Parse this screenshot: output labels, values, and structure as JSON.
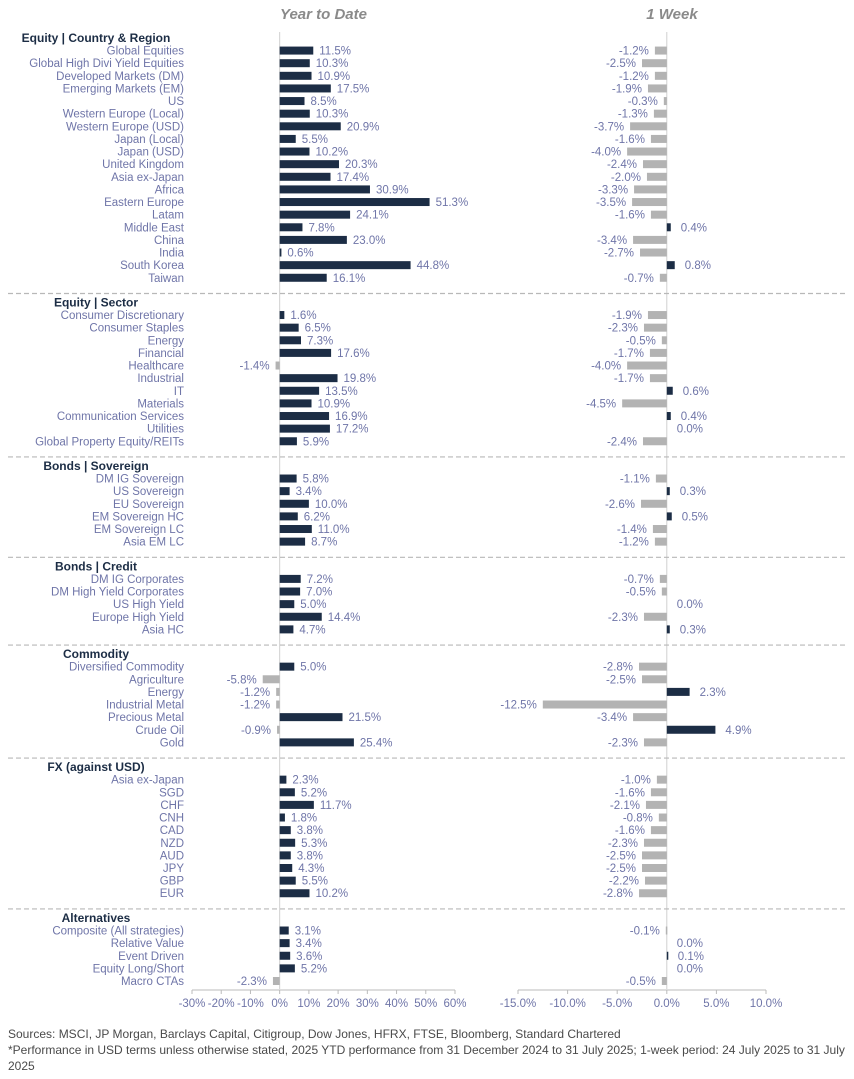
{
  "chart_data": {
    "type": "bar",
    "panels": [
      {
        "title": "Year to Date",
        "ylim": [
          -30,
          60
        ],
        "ticks": [
          "-30%",
          "-20%",
          "-10%",
          "0%",
          "10%",
          "20%",
          "30%",
          "40%",
          "50%",
          "60%"
        ]
      },
      {
        "title": "1 Week",
        "ylim": [
          -15,
          10
        ],
        "ticks": [
          "-15.0%",
          "-10.0%",
          "-5.0%",
          "0.0%",
          "5.0%",
          "10.0%"
        ]
      }
    ],
    "groups": [
      {
        "name": "Equity | Country & Region",
        "rows": [
          {
            "label": "Global Equities",
            "ytd": 11.5,
            "ytd_label": "11.5%",
            "wk": -1.2,
            "wk_label": "-1.2%"
          },
          {
            "label": "Global High Divi Yield Equities",
            "ytd": 10.3,
            "ytd_label": "10.3%",
            "wk": -2.5,
            "wk_label": "-2.5%"
          },
          {
            "label": "Developed Markets (DM)",
            "ytd": 10.9,
            "ytd_label": "10.9%",
            "wk": -1.2,
            "wk_label": "-1.2%"
          },
          {
            "label": "Emerging Markets (EM)",
            "ytd": 17.5,
            "ytd_label": "17.5%",
            "wk": -1.9,
            "wk_label": "-1.9%"
          },
          {
            "label": "US",
            "ytd": 8.5,
            "ytd_label": "8.5%",
            "wk": -0.3,
            "wk_label": "-0.3%"
          },
          {
            "label": "Western Europe (Local)",
            "ytd": 10.3,
            "ytd_label": "10.3%",
            "wk": -1.3,
            "wk_label": "-1.3%"
          },
          {
            "label": "Western Europe (USD)",
            "ytd": 20.9,
            "ytd_label": "20.9%",
            "wk": -3.7,
            "wk_label": "-3.7%"
          },
          {
            "label": "Japan (Local)",
            "ytd": 5.5,
            "ytd_label": "5.5%",
            "wk": -1.6,
            "wk_label": "-1.6%"
          },
          {
            "label": "Japan (USD)",
            "ytd": 10.2,
            "ytd_label": "10.2%",
            "wk": -4.0,
            "wk_label": "-4.0%"
          },
          {
            "label": "United Kingdom",
            "ytd": 20.3,
            "ytd_label": "20.3%",
            "wk": -2.4,
            "wk_label": "-2.4%"
          },
          {
            "label": "Asia ex-Japan",
            "ytd": 17.4,
            "ytd_label": "17.4%",
            "wk": -2.0,
            "wk_label": "-2.0%"
          },
          {
            "label": "Africa",
            "ytd": 30.9,
            "ytd_label": "30.9%",
            "wk": -3.3,
            "wk_label": "-3.3%"
          },
          {
            "label": "Eastern Europe",
            "ytd": 51.3,
            "ytd_label": "51.3%",
            "wk": -3.5,
            "wk_label": "-3.5%"
          },
          {
            "label": "Latam",
            "ytd": 24.1,
            "ytd_label": "24.1%",
            "wk": -1.6,
            "wk_label": "-1.6%"
          },
          {
            "label": "Middle East",
            "ytd": 7.8,
            "ytd_label": "7.8%",
            "wk": 0.4,
            "wk_label": "0.4%"
          },
          {
            "label": "China",
            "ytd": 23.0,
            "ytd_label": "23.0%",
            "wk": -3.4,
            "wk_label": "-3.4%"
          },
          {
            "label": "India",
            "ytd": 0.6,
            "ytd_label": "0.6%",
            "wk": -2.7,
            "wk_label": "-2.7%"
          },
          {
            "label": "South Korea",
            "ytd": 44.8,
            "ytd_label": "44.8%",
            "wk": 0.8,
            "wk_label": "0.8%"
          },
          {
            "label": "Taiwan",
            "ytd": 16.1,
            "ytd_label": "16.1%",
            "wk": -0.7,
            "wk_label": "-0.7%"
          }
        ]
      },
      {
        "name": "Equity | Sector",
        "rows": [
          {
            "label": "Consumer Discretionary",
            "ytd": 1.6,
            "ytd_label": "1.6%",
            "wk": -1.9,
            "wk_label": "-1.9%"
          },
          {
            "label": "Consumer Staples",
            "ytd": 6.5,
            "ytd_label": "6.5%",
            "wk": -2.3,
            "wk_label": "-2.3%"
          },
          {
            "label": "Energy",
            "ytd": 7.3,
            "ytd_label": "7.3%",
            "wk": -0.5,
            "wk_label": "-0.5%"
          },
          {
            "label": "Financial",
            "ytd": 17.6,
            "ytd_label": "17.6%",
            "wk": -1.7,
            "wk_label": "-1.7%"
          },
          {
            "label": "Healthcare",
            "ytd": -1.4,
            "ytd_label": "-1.4%",
            "wk": -4.0,
            "wk_label": "-4.0%"
          },
          {
            "label": "Industrial",
            "ytd": 19.8,
            "ytd_label": "19.8%",
            "wk": -1.7,
            "wk_label": "-1.7%"
          },
          {
            "label": "IT",
            "ytd": 13.5,
            "ytd_label": "13.5%",
            "wk": 0.6,
            "wk_label": "0.6%"
          },
          {
            "label": "Materials",
            "ytd": 10.9,
            "ytd_label": "10.9%",
            "wk": -4.5,
            "wk_label": "-4.5%"
          },
          {
            "label": "Communication Services",
            "ytd": 16.9,
            "ytd_label": "16.9%",
            "wk": 0.4,
            "wk_label": "0.4%"
          },
          {
            "label": "Utilities",
            "ytd": 17.2,
            "ytd_label": "17.2%",
            "wk": 0.0,
            "wk_label": "0.0%"
          },
          {
            "label": "Global Property Equity/REITs",
            "ytd": 5.9,
            "ytd_label": "5.9%",
            "wk": -2.4,
            "wk_label": "-2.4%"
          }
        ]
      },
      {
        "name": "Bonds | Sovereign",
        "rows": [
          {
            "label": "DM IG Sovereign",
            "ytd": 5.8,
            "ytd_label": "5.8%",
            "wk": -1.1,
            "wk_label": "-1.1%"
          },
          {
            "label": "US Sovereign",
            "ytd": 3.4,
            "ytd_label": "3.4%",
            "wk": 0.3,
            "wk_label": "0.3%"
          },
          {
            "label": "EU Sovereign",
            "ytd": 10.0,
            "ytd_label": "10.0%",
            "wk": -2.6,
            "wk_label": "-2.6%"
          },
          {
            "label": "EM Sovereign HC",
            "ytd": 6.2,
            "ytd_label": "6.2%",
            "wk": 0.5,
            "wk_label": "0.5%"
          },
          {
            "label": "EM Sovereign LC",
            "ytd": 11.0,
            "ytd_label": "11.0%",
            "wk": -1.4,
            "wk_label": "-1.4%"
          },
          {
            "label": "Asia EM LC",
            "ytd": 8.7,
            "ytd_label": "8.7%",
            "wk": -1.2,
            "wk_label": "-1.2%"
          }
        ]
      },
      {
        "name": "Bonds | Credit",
        "rows": [
          {
            "label": "DM IG Corporates",
            "ytd": 7.2,
            "ytd_label": "7.2%",
            "wk": -0.7,
            "wk_label": "-0.7%"
          },
          {
            "label": "DM High Yield Corporates",
            "ytd": 7.0,
            "ytd_label": "7.0%",
            "wk": -0.5,
            "wk_label": "-0.5%"
          },
          {
            "label": "US High Yield",
            "ytd": 5.0,
            "ytd_label": "5.0%",
            "wk": 0.0,
            "wk_label": "0.0%"
          },
          {
            "label": "Europe High Yield",
            "ytd": 14.4,
            "ytd_label": "14.4%",
            "wk": -2.3,
            "wk_label": "-2.3%"
          },
          {
            "label": "Asia HC",
            "ytd": 4.7,
            "ytd_label": "4.7%",
            "wk": 0.3,
            "wk_label": "0.3%"
          }
        ]
      },
      {
        "name": "Commodity",
        "rows": [
          {
            "label": "Diversified Commodity",
            "ytd": 5.0,
            "ytd_label": "5.0%",
            "wk": -2.8,
            "wk_label": "-2.8%"
          },
          {
            "label": "Agriculture",
            "ytd": -5.8,
            "ytd_label": "-5.8%",
            "wk": -2.5,
            "wk_label": "-2.5%"
          },
          {
            "label": "Energy",
            "ytd": -1.2,
            "ytd_label": "-1.2%",
            "wk": 2.3,
            "wk_label": "2.3%"
          },
          {
            "label": "Industrial Metal",
            "ytd": -1.2,
            "ytd_label": "-1.2%",
            "wk": -12.5,
            "wk_label": "-12.5%"
          },
          {
            "label": "Precious Metal",
            "ytd": 21.5,
            "ytd_label": "21.5%",
            "wk": -3.4,
            "wk_label": "-3.4%"
          },
          {
            "label": "Crude Oil",
            "ytd": -0.9,
            "ytd_label": "-0.9%",
            "wk": 4.9,
            "wk_label": "4.9%"
          },
          {
            "label": "Gold",
            "ytd": 25.4,
            "ytd_label": "25.4%",
            "wk": -2.3,
            "wk_label": "-2.3%"
          }
        ]
      },
      {
        "name": "FX (against USD)",
        "rows": [
          {
            "label": "Asia ex-Japan",
            "ytd": 2.3,
            "ytd_label": "2.3%",
            "wk": -1.0,
            "wk_label": "-1.0%"
          },
          {
            "label": "SGD",
            "ytd": 5.2,
            "ytd_label": "5.2%",
            "wk": -1.6,
            "wk_label": "-1.6%"
          },
          {
            "label": "CHF",
            "ytd": 11.7,
            "ytd_label": "11.7%",
            "wk": -2.1,
            "wk_label": "-2.1%"
          },
          {
            "label": "CNH",
            "ytd": 1.8,
            "ytd_label": "1.8%",
            "wk": -0.8,
            "wk_label": "-0.8%"
          },
          {
            "label": "CAD",
            "ytd": 3.8,
            "ytd_label": "3.8%",
            "wk": -1.6,
            "wk_label": "-1.6%"
          },
          {
            "label": "NZD",
            "ytd": 5.3,
            "ytd_label": "5.3%",
            "wk": -2.3,
            "wk_label": "-2.3%"
          },
          {
            "label": "AUD",
            "ytd": 3.8,
            "ytd_label": "3.8%",
            "wk": -2.5,
            "wk_label": "-2.5%"
          },
          {
            "label": "JPY",
            "ytd": 4.3,
            "ytd_label": "4.3%",
            "wk": -2.5,
            "wk_label": "-2.5%"
          },
          {
            "label": "GBP",
            "ytd": 5.5,
            "ytd_label": "5.5%",
            "wk": -2.2,
            "wk_label": "-2.2%"
          },
          {
            "label": "EUR",
            "ytd": 10.2,
            "ytd_label": "10.2%",
            "wk": -2.8,
            "wk_label": "-2.8%"
          }
        ]
      },
      {
        "name": "Alternatives",
        "rows": [
          {
            "label": "Composite (All strategies)",
            "ytd": 3.1,
            "ytd_label": "3.1%",
            "wk": -0.1,
            "wk_label": "-0.1%"
          },
          {
            "label": "Relative Value",
            "ytd": 3.4,
            "ytd_label": "3.4%",
            "wk": 0.0,
            "wk_label": "0.0%"
          },
          {
            "label": "Event Driven",
            "ytd": 3.6,
            "ytd_label": "3.6%",
            "wk": 0.1,
            "wk_label": "0.1%"
          },
          {
            "label": "Equity Long/Short",
            "ytd": 5.2,
            "ytd_label": "5.2%",
            "wk": 0.0,
            "wk_label": "0.0%"
          },
          {
            "label": "Macro CTAs",
            "ytd": -2.3,
            "ytd_label": "-2.3%",
            "wk": -0.5,
            "wk_label": "-0.5%"
          }
        ]
      }
    ],
    "colors": {
      "positive": "#1c2d45",
      "negative": "#b3b3b3",
      "label": "#6f75a8",
      "heading": "#1c2d45",
      "title": "#8a8a8a",
      "divider": "#b8b8b8"
    }
  },
  "footer": {
    "sources": "Sources: MSCI, JP Morgan, Barclays Capital, Citigroup, Dow Jones, HFRX, FTSE, Bloomberg, Standard Chartered",
    "note": "*Performance in USD terms unless otherwise stated, 2025 YTD performance from 31 December 2024 to 31 July 2025; 1-week period: 24 July 2025 to 31 July 2025"
  }
}
